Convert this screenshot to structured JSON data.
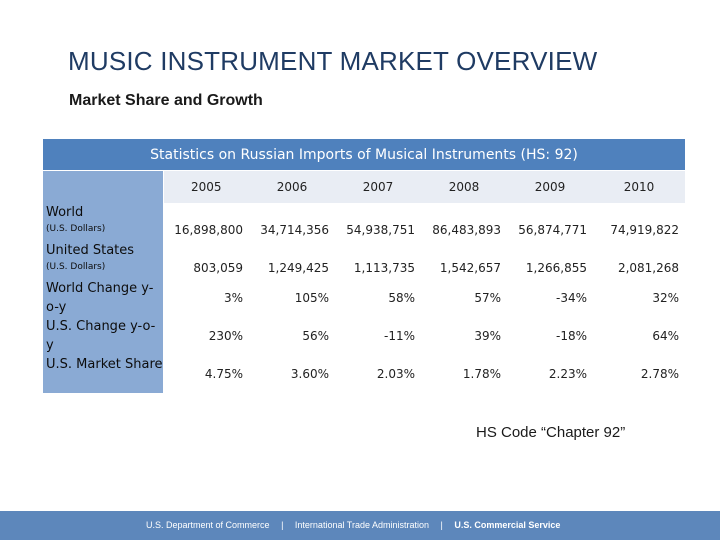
{
  "slide": {
    "title": "MUSIC INSTRUMENT MARKET OVERVIEW",
    "subtitle": "Market Share and Growth",
    "note": "HS Code “Chapter 92”"
  },
  "table": {
    "caption": "Statistics on Russian Imports of Musical Instruments (HS: 92)",
    "years": [
      "2005",
      "2006",
      "2007",
      "2008",
      "2009",
      "2010"
    ],
    "rows": [
      {
        "label": "World",
        "sublabel": "(U.S. Dollars)",
        "values": [
          "16,898,800",
          "34,714,356",
          "54,938,751",
          "86,483,893",
          "56,874,771",
          "74,919,822"
        ]
      },
      {
        "label": "United States",
        "sublabel": "(U.S. Dollars)",
        "values": [
          "803,059",
          "1,249,425",
          "1,113,735",
          "1,542,657",
          "1,266,855",
          "2,081,268"
        ]
      },
      {
        "label": "World Change y-o-y",
        "sublabel": "",
        "values": [
          "3%",
          "105%",
          "58%",
          "57%",
          "-34%",
          "32%"
        ]
      },
      {
        "label": "U.S. Change y-o-y",
        "sublabel": "",
        "values": [
          "230%",
          "56%",
          "-11%",
          "39%",
          "-18%",
          "64%"
        ]
      },
      {
        "label": "U.S. Market Share",
        "sublabel": "",
        "values": [
          "4.75%",
          "3.60%",
          "2.03%",
          "1.78%",
          "2.23%",
          "2.78%"
        ]
      }
    ]
  },
  "footer": {
    "item1": "U.S. Department of Commerce",
    "separator": "|",
    "item2": "International Trade Administration",
    "item3": "U.S. Commercial Service"
  },
  "colors": {
    "header_blue": "#4f81bd",
    "label_blue": "#8aaad4",
    "footer_blue": "#5d87bb",
    "title_navy": "#1f3b63"
  }
}
